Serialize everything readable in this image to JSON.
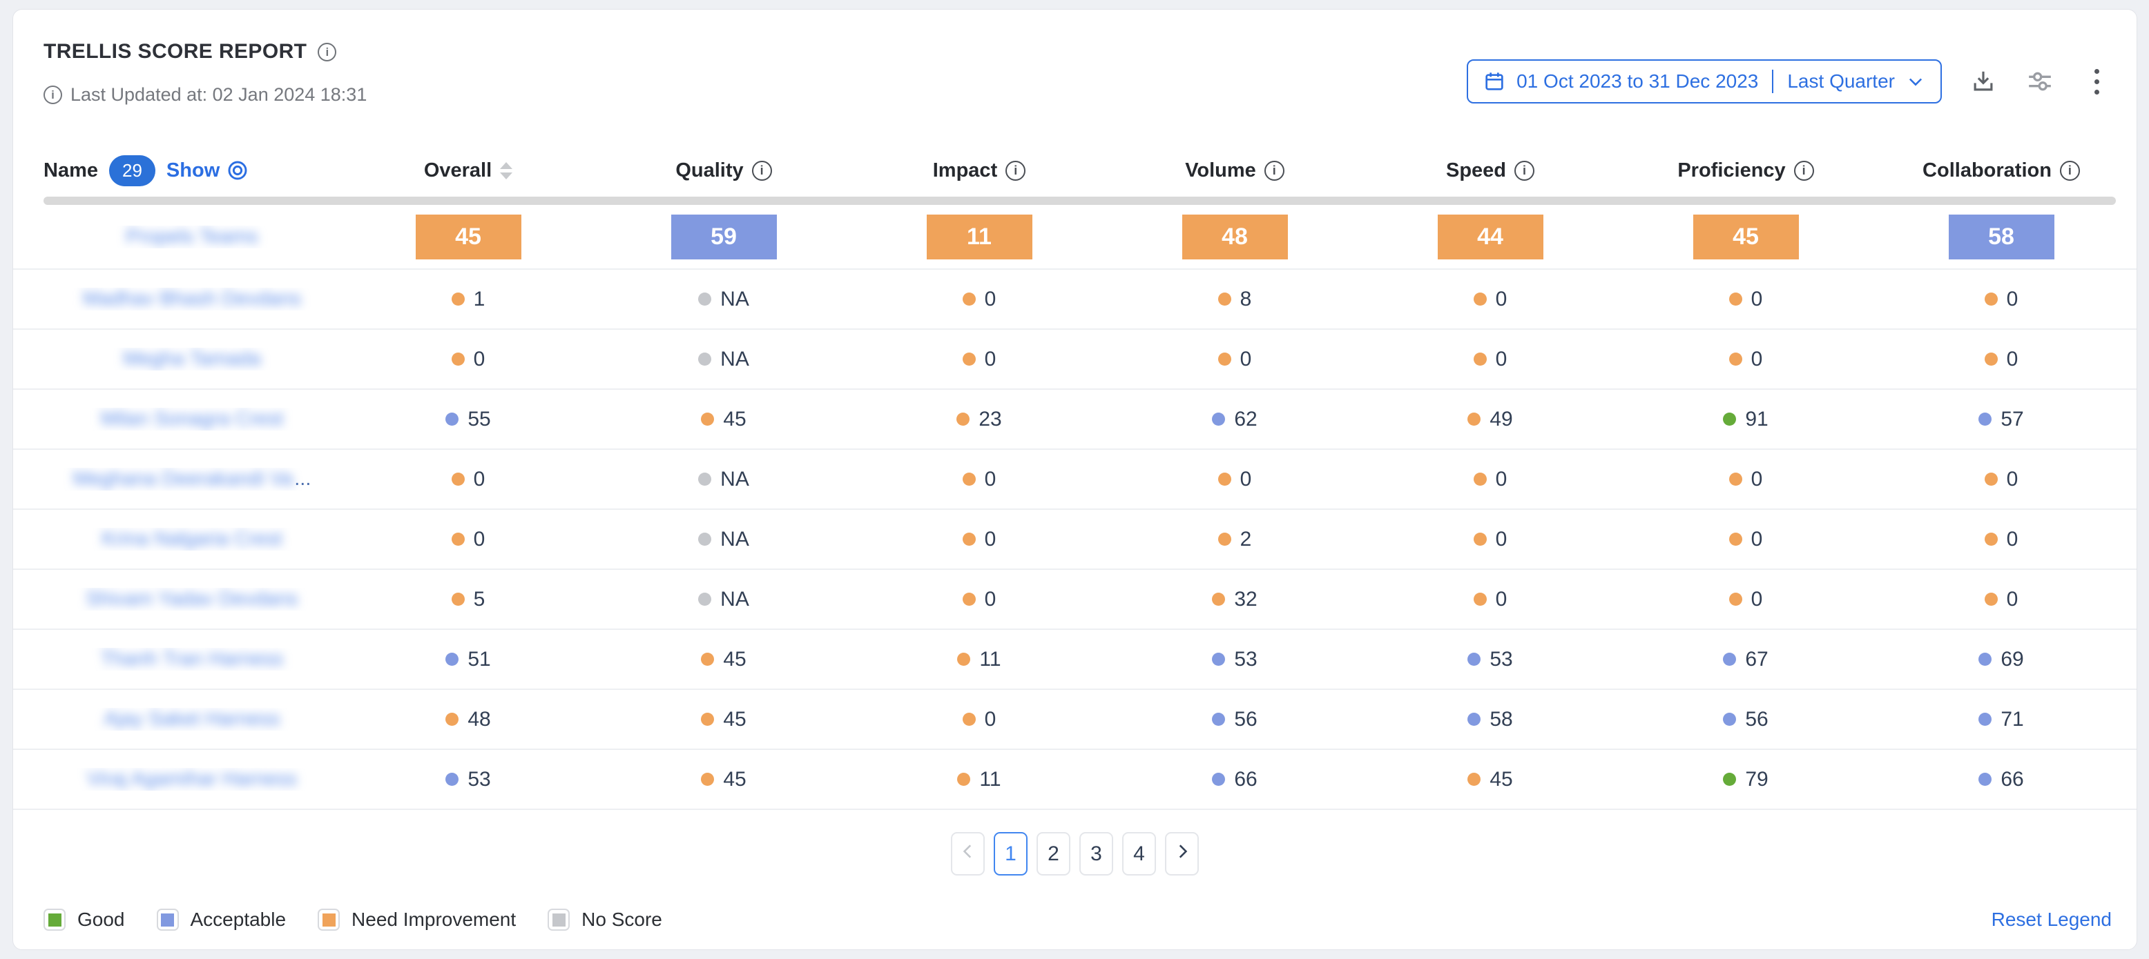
{
  "header": {
    "title": "TRELLIS SCORE REPORT",
    "last_updated": "Last Updated at: 02 Jan 2024 18:31",
    "date_picker": {
      "range": "01 Oct 2023 to 31 Dec 2023",
      "preset": "Last Quarter"
    }
  },
  "colors": {
    "good": "#65ab39",
    "acceptable": "#8199e0",
    "need_improvement": "#f0a35a",
    "no_score": "#c5c7cb"
  },
  "table": {
    "name_header": {
      "label": "Name",
      "count": "29",
      "show_label": "Show"
    },
    "columns": [
      {
        "label": "Overall",
        "icon": "sort"
      },
      {
        "label": "Quality",
        "icon": "info"
      },
      {
        "label": "Impact",
        "icon": "info"
      },
      {
        "label": "Volume",
        "icon": "info"
      },
      {
        "label": "Speed",
        "icon": "info"
      },
      {
        "label": "Proficiency",
        "icon": "info"
      },
      {
        "label": "Collaboration",
        "icon": "info"
      }
    ],
    "rows": [
      {
        "name": "Propels Teams",
        "blurred": true,
        "truncated": false,
        "style": "badge",
        "scores": [
          {
            "value": "45",
            "status": "need_improvement"
          },
          {
            "value": "59",
            "status": "acceptable"
          },
          {
            "value": "11",
            "status": "need_improvement"
          },
          {
            "value": "48",
            "status": "need_improvement"
          },
          {
            "value": "44",
            "status": "need_improvement"
          },
          {
            "value": "45",
            "status": "need_improvement"
          },
          {
            "value": "58",
            "status": "acceptable"
          }
        ]
      },
      {
        "name": "Madhav Bhash Devdans",
        "blurred": true,
        "truncated": false,
        "style": "dots",
        "scores": [
          {
            "value": "1",
            "status": "need_improvement"
          },
          {
            "value": "NA",
            "status": "no_score"
          },
          {
            "value": "0",
            "status": "need_improvement"
          },
          {
            "value": "8",
            "status": "need_improvement"
          },
          {
            "value": "0",
            "status": "need_improvement"
          },
          {
            "value": "0",
            "status": "need_improvement"
          },
          {
            "value": "0",
            "status": "need_improvement"
          }
        ]
      },
      {
        "name": "Megha Tamada",
        "blurred": true,
        "truncated": false,
        "style": "dots",
        "scores": [
          {
            "value": "0",
            "status": "need_improvement"
          },
          {
            "value": "NA",
            "status": "no_score"
          },
          {
            "value": "0",
            "status": "need_improvement"
          },
          {
            "value": "0",
            "status": "need_improvement"
          },
          {
            "value": "0",
            "status": "need_improvement"
          },
          {
            "value": "0",
            "status": "need_improvement"
          },
          {
            "value": "0",
            "status": "need_improvement"
          }
        ]
      },
      {
        "name": "Milan Sonagra Crest",
        "blurred": true,
        "truncated": false,
        "style": "dots",
        "scores": [
          {
            "value": "55",
            "status": "acceptable"
          },
          {
            "value": "45",
            "status": "need_improvement"
          },
          {
            "value": "23",
            "status": "need_improvement"
          },
          {
            "value": "62",
            "status": "acceptable"
          },
          {
            "value": "49",
            "status": "need_improvement"
          },
          {
            "value": "91",
            "status": "good"
          },
          {
            "value": "57",
            "status": "acceptable"
          }
        ]
      },
      {
        "name": "Meghana Deerakandi Va",
        "blurred": true,
        "truncated": true,
        "style": "dots",
        "scores": [
          {
            "value": "0",
            "status": "need_improvement"
          },
          {
            "value": "NA",
            "status": "no_score"
          },
          {
            "value": "0",
            "status": "need_improvement"
          },
          {
            "value": "0",
            "status": "need_improvement"
          },
          {
            "value": "0",
            "status": "need_improvement"
          },
          {
            "value": "0",
            "status": "need_improvement"
          },
          {
            "value": "0",
            "status": "need_improvement"
          }
        ]
      },
      {
        "name": "Krina Nalgaria Crest",
        "blurred": true,
        "truncated": false,
        "style": "dots",
        "scores": [
          {
            "value": "0",
            "status": "need_improvement"
          },
          {
            "value": "NA",
            "status": "no_score"
          },
          {
            "value": "0",
            "status": "need_improvement"
          },
          {
            "value": "2",
            "status": "need_improvement"
          },
          {
            "value": "0",
            "status": "need_improvement"
          },
          {
            "value": "0",
            "status": "need_improvement"
          },
          {
            "value": "0",
            "status": "need_improvement"
          }
        ]
      },
      {
        "name": "Shivam Yadav Devdans",
        "blurred": true,
        "truncated": false,
        "style": "dots",
        "scores": [
          {
            "value": "5",
            "status": "need_improvement"
          },
          {
            "value": "NA",
            "status": "no_score"
          },
          {
            "value": "0",
            "status": "need_improvement"
          },
          {
            "value": "32",
            "status": "need_improvement"
          },
          {
            "value": "0",
            "status": "need_improvement"
          },
          {
            "value": "0",
            "status": "need_improvement"
          },
          {
            "value": "0",
            "status": "need_improvement"
          }
        ]
      },
      {
        "name": "Thanh Tran Harness",
        "blurred": true,
        "truncated": false,
        "style": "dots",
        "scores": [
          {
            "value": "51",
            "status": "acceptable"
          },
          {
            "value": "45",
            "status": "need_improvement"
          },
          {
            "value": "11",
            "status": "need_improvement"
          },
          {
            "value": "53",
            "status": "acceptable"
          },
          {
            "value": "53",
            "status": "acceptable"
          },
          {
            "value": "67",
            "status": "acceptable"
          },
          {
            "value": "69",
            "status": "acceptable"
          }
        ]
      },
      {
        "name": "Ajay Saket Harness",
        "blurred": true,
        "truncated": false,
        "style": "dots",
        "scores": [
          {
            "value": "48",
            "status": "need_improvement"
          },
          {
            "value": "45",
            "status": "need_improvement"
          },
          {
            "value": "0",
            "status": "need_improvement"
          },
          {
            "value": "56",
            "status": "acceptable"
          },
          {
            "value": "58",
            "status": "acceptable"
          },
          {
            "value": "56",
            "status": "acceptable"
          },
          {
            "value": "71",
            "status": "acceptable"
          }
        ]
      },
      {
        "name": "Viraj Agamihar Harness",
        "blurred": true,
        "truncated": false,
        "style": "dots",
        "scores": [
          {
            "value": "53",
            "status": "acceptable"
          },
          {
            "value": "45",
            "status": "need_improvement"
          },
          {
            "value": "11",
            "status": "need_improvement"
          },
          {
            "value": "66",
            "status": "acceptable"
          },
          {
            "value": "45",
            "status": "need_improvement"
          },
          {
            "value": "79",
            "status": "good"
          },
          {
            "value": "66",
            "status": "acceptable"
          }
        ]
      }
    ]
  },
  "pagination": {
    "prev_enabled": false,
    "pages": [
      "1",
      "2",
      "3",
      "4"
    ],
    "active_page": "1"
  },
  "legend": {
    "items": [
      {
        "label": "Good",
        "status": "good"
      },
      {
        "label": "Acceptable",
        "status": "acceptable"
      },
      {
        "label": "Need Improvement",
        "status": "need_improvement"
      },
      {
        "label": "No Score",
        "status": "no_score"
      }
    ],
    "reset_label": "Reset Legend"
  }
}
